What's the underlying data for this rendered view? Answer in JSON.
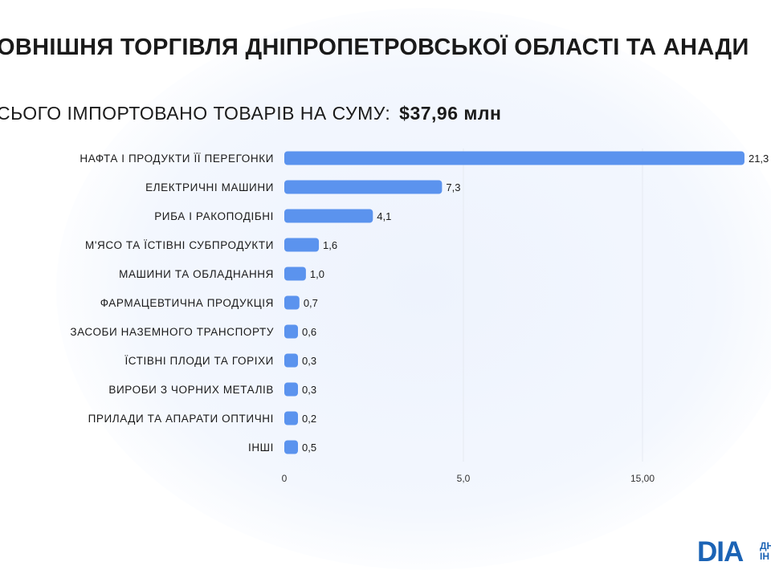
{
  "header": {
    "title": "ОВНІШНЯ ТОРГІВЛЯ ДНІПРОПЕТРОВСЬКОЇ ОБЛАСТІ ТА АНАДИ",
    "subtitle_prefix": "СЬОГО ІМПОРТОВАНО ТОВАРІВ НА СУМУ:",
    "subtitle_sum": "$37,96 млн"
  },
  "chart_data": {
    "type": "bar",
    "orientation": "horizontal",
    "categories": [
      "НАФТА І ПРОДУКТИ ЇЇ ПЕРЕГОНКИ",
      "ЕЛЕКТРИЧНІ МАШИНИ",
      "РИБА І РАКОПОДІБНІ",
      "М'ЯСО ТА ЇСТІВНІ СУБПРОДУКТИ",
      "МАШИНИ ТА ОБЛАДНАННЯ",
      "ФАРМАЦЕВТИЧНА ПРОДУКЦІЯ",
      "ЗАСОБИ НАЗЕМНОГО ТРАНСПОРТУ",
      "ЇСТІВНІ ПЛОДИ ТА ГОРІХИ",
      "ВИРОБИ З ЧОРНИХ МЕТАЛІВ",
      "ПРИЛАДИ ТА АПАРАТИ ОПТИЧНІ",
      "ІНШІ"
    ],
    "values": [
      21.3,
      7.3,
      4.1,
      1.6,
      1.0,
      0.7,
      0.6,
      0.3,
      0.3,
      0.2,
      0.5
    ],
    "value_labels": [
      "21,3",
      "7,3",
      "4,1",
      "1,6",
      "1,0",
      "0,7",
      "0,6",
      "0,3",
      "0,3",
      "0,2",
      "0,5"
    ],
    "x_ticks": [
      {
        "value": 0,
        "label": "0"
      },
      {
        "value": 5,
        "label": "5,0"
      },
      {
        "value": 15,
        "label": "15,00"
      }
    ],
    "grid": true,
    "bar_color": "#5b93ee"
  },
  "logo": {
    "mark": "DIA",
    "side_text": "ДН\nІН"
  }
}
